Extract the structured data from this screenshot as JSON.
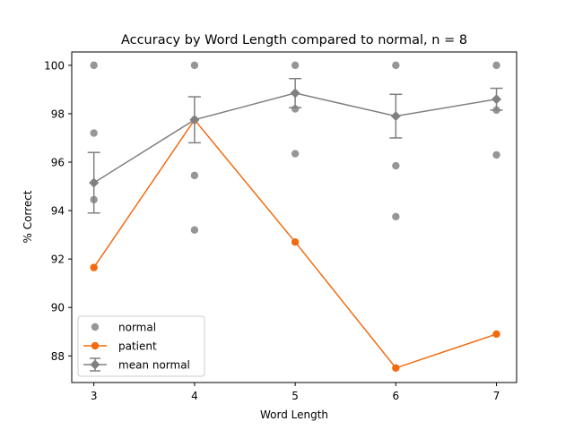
{
  "chart_data": {
    "type": "scatter",
    "title": "Accuracy by Word Length compared to normal, n = 8",
    "xlabel": "Word Length",
    "ylabel": "% Correct",
    "xlim": [
      2.78,
      7.2
    ],
    "ylim": [
      86.9,
      100.55
    ],
    "x_ticks": [
      3,
      4,
      5,
      6,
      7
    ],
    "y_ticks": [
      88,
      90,
      92,
      94,
      96,
      98,
      100
    ],
    "grid": false,
    "legend_position": "lower-left",
    "normal_points": [
      {
        "x": 3,
        "y": 100.0
      },
      {
        "x": 3,
        "y": 97.2
      },
      {
        "x": 3,
        "y": 94.45
      },
      {
        "x": 4,
        "y": 100.0
      },
      {
        "x": 4,
        "y": 95.45
      },
      {
        "x": 4,
        "y": 93.2
      },
      {
        "x": 5,
        "y": 100.0
      },
      {
        "x": 5,
        "y": 98.2
      },
      {
        "x": 5,
        "y": 96.35
      },
      {
        "x": 6,
        "y": 100.0
      },
      {
        "x": 6,
        "y": 95.85
      },
      {
        "x": 6,
        "y": 93.75
      },
      {
        "x": 7,
        "y": 100.0
      },
      {
        "x": 7,
        "y": 98.15
      },
      {
        "x": 7,
        "y": 96.3
      }
    ],
    "series": [
      {
        "name": "normal",
        "kind": "scatter",
        "color": "#555555"
      },
      {
        "name": "patient",
        "kind": "line",
        "color": "#f26b0f",
        "x": [
          3,
          4,
          5,
          6,
          7
        ],
        "values": [
          91.65,
          97.75,
          92.7,
          87.5,
          88.9
        ]
      },
      {
        "name": "mean normal",
        "kind": "errorbar",
        "color": "#808080",
        "x": [
          3,
          4,
          5,
          6,
          7
        ],
        "values": [
          95.15,
          97.75,
          98.85,
          97.9,
          98.6
        ],
        "error": [
          1.25,
          0.95,
          0.6,
          0.9,
          0.45
        ]
      }
    ]
  }
}
